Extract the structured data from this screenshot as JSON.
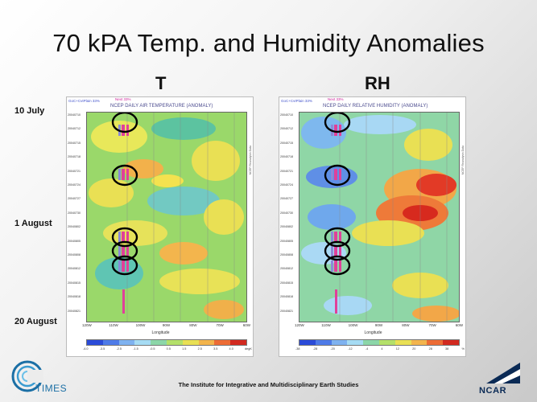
{
  "slide": {
    "title": "70 kPA Temp. and Humidity Anomalies",
    "footer": "The Institute for Integrative and Multidisciplinary Earth Studies"
  },
  "panels": [
    {
      "heading": "T",
      "caption": "NCEP DAILY AIR TEMPERATURE (ANOMALY)",
      "legend_left": "GoC+CvtPlain 33%",
      "legend_pink": "Next 33%",
      "colorbar_ticks": [
        "-4.0",
        "-3.5",
        "-2.5",
        "-1.5",
        "-0.5",
        "0.5",
        "1.5",
        "2.5",
        "3.5",
        "4.0"
      ],
      "colorbar_unit": "degK",
      "longitudes": [
        "120W",
        "110W",
        "100W",
        "90W",
        "80W",
        "70W",
        "60W"
      ],
      "xlabel": "Longitude"
    },
    {
      "heading": "RH",
      "caption": "NCEP DAILY RELATIVE HUMIDITY (ANOMALY)",
      "legend_left": "GoC+CvtPlain 33%",
      "legend_pink": "Next 33%",
      "colorbar_ticks": [
        "-38",
        "-28",
        "-20",
        "-12",
        "-4",
        "4",
        "12",
        "20",
        "28",
        "38"
      ],
      "colorbar_unit": "%",
      "longitudes": [
        "120W",
        "110W",
        "100W",
        "90W",
        "80W",
        "70W",
        "60W"
      ],
      "xlabel": "Longitude"
    }
  ],
  "date_labels": [
    "10 July",
    "1 August",
    "20 August"
  ],
  "date_ticks": [
    "20040710",
    "20040712",
    "20040715",
    "20040718",
    "20040721",
    "20040724",
    "20040727",
    "20040730",
    "20040802",
    "20040805",
    "20040808",
    "20040812",
    "20040815",
    "20040818",
    "20040821"
  ],
  "logos": {
    "left": "TIMES",
    "right": "NCAR"
  },
  "colors": {
    "title": "#111111",
    "circle": "#000000",
    "marker_pink": "#e0409a"
  }
}
